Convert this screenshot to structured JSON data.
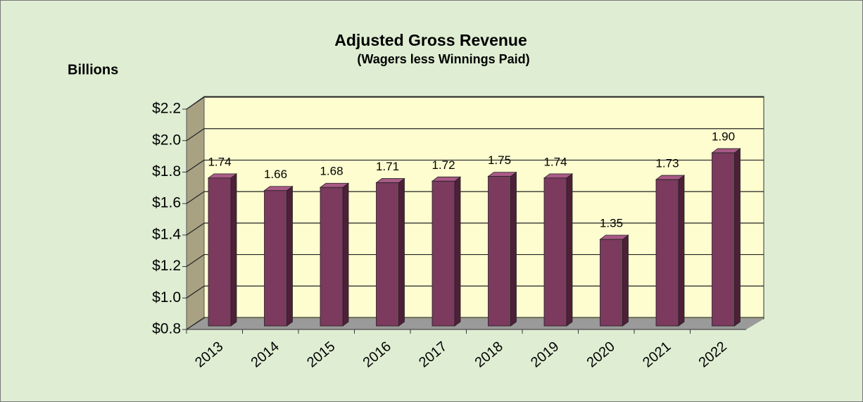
{
  "chart_data": {
    "type": "bar3d",
    "title": "Adjusted Gross Revenue",
    "subtitle": "(Wagers less Winnings Paid)",
    "y_axis_label": "Billions",
    "categories": [
      "2013",
      "2014",
      "2015",
      "2016",
      "2017",
      "2018",
      "2019",
      "2020",
      "2021",
      "2022"
    ],
    "values": [
      1.74,
      1.66,
      1.68,
      1.71,
      1.72,
      1.75,
      1.74,
      1.35,
      1.73,
      1.9
    ],
    "value_labels": [
      "1.74",
      "1.66",
      "1.68",
      "1.71",
      "1.72",
      "1.75",
      "1.74",
      "1.35",
      "1.73",
      "1.90"
    ],
    "color": "#7b3a5e",
    "ylim": [
      0.8,
      2.2
    ],
    "yticks": [
      {
        "value": 0.8,
        "label": "$0.8"
      },
      {
        "value": 1.0,
        "label": "$1.0"
      },
      {
        "value": 1.2,
        "label": "$1.2"
      },
      {
        "value": 1.4,
        "label": "$1.4"
      },
      {
        "value": 1.6,
        "label": "$1.6"
      },
      {
        "value": 1.8,
        "label": "$1.8"
      },
      {
        "value": 2.0,
        "label": "$2.0"
      },
      {
        "value": 2.2,
        "label": "$2.2"
      }
    ],
    "grid": true
  }
}
